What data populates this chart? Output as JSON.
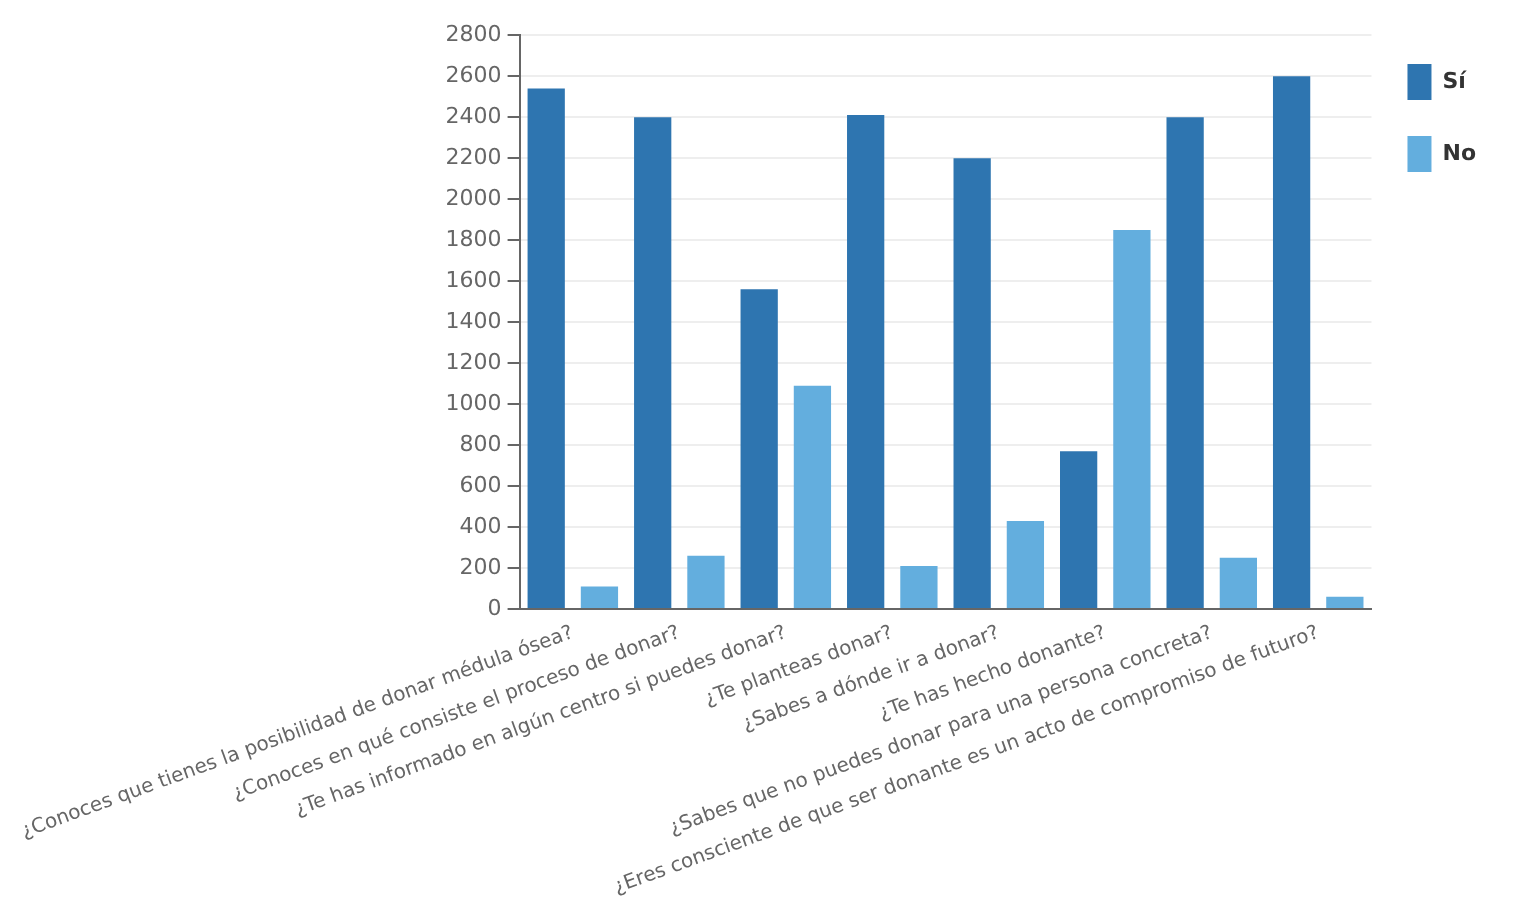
{
  "chart_data": {
    "type": "bar",
    "categories": [
      "¿Conoces que tienes la posibilidad de donar médula ósea?",
      "¿Conoces en qué consiste el proceso de donar?",
      "¿Te has informado en algún centro si puedes donar?",
      "¿Te planteas donar?",
      "¿Sabes a dónde ir a donar?",
      "¿Te has hecho donante?",
      "¿Sabes que no puedes donar para una persona concreta?",
      "¿Eres consciente de que ser donante es un acto de compromiso de futuro?"
    ],
    "series": [
      {
        "name": "Sí",
        "color": "#2e75b0",
        "values": [
          2540,
          2400,
          1560,
          2410,
          2200,
          770,
          2400,
          2600
        ]
      },
      {
        "name": "No",
        "color": "#63aede",
        "values": [
          110,
          260,
          1090,
          210,
          430,
          1850,
          250,
          60
        ]
      }
    ],
    "ylim": [
      0,
      2800
    ],
    "yticks": [
      0,
      200,
      400,
      600,
      800,
      1000,
      1200,
      1400,
      1600,
      1800,
      2000,
      2200,
      2400,
      2600,
      2800
    ],
    "grid": "y",
    "legend": "top right"
  }
}
